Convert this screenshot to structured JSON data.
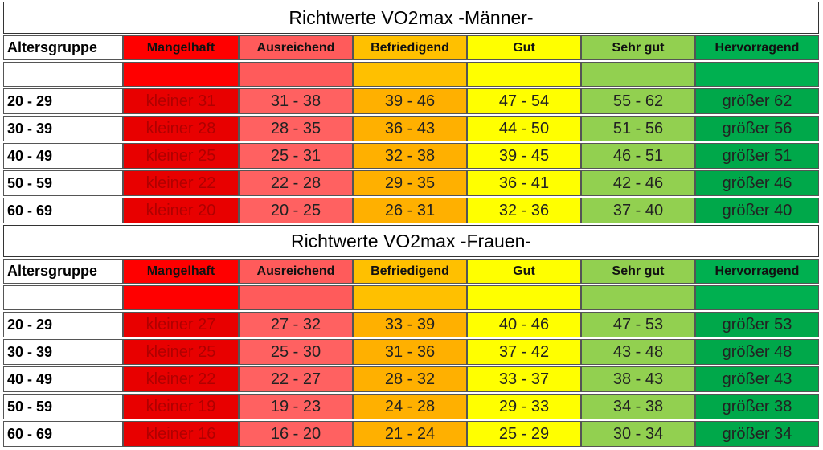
{
  "sections": [
    {
      "title": "Richtwerte VO2max -Männer-",
      "headers": [
        "Altersgruppe",
        "Mangelhaft",
        "Ausreichend",
        "Befriedigend",
        "Gut",
        "Sehr gut",
        "Hervorragend"
      ],
      "rows": [
        [
          "20 - 29",
          "kleiner 31",
          "31 - 38",
          "39 - 46",
          "47 - 54",
          "55 - 62",
          "größer 62"
        ],
        [
          "30 - 39",
          "kleiner 28",
          "28 - 35",
          "36 - 43",
          "44 - 50",
          "51 - 56",
          "größer 56"
        ],
        [
          "40 - 49",
          "kleiner 25",
          "25 - 31",
          "32 - 38",
          "39 - 45",
          "46 - 51",
          "größer 51"
        ],
        [
          "50 - 59",
          "kleiner 22",
          "22 - 28",
          "29 - 35",
          "36 - 41",
          "42 - 46",
          "größer 46"
        ],
        [
          "60 - 69",
          "kleiner 20",
          "20 - 25",
          "26 - 31",
          "32 - 36",
          "37 - 40",
          "größer 40"
        ]
      ]
    },
    {
      "title": "Richtwerte VO2max -Frauen-",
      "headers": [
        "Altersgruppe",
        "Mangelhaft",
        "Ausreichend",
        "Befriedigend",
        "Gut",
        "Sehr gut",
        "Hervorragend"
      ],
      "rows": [
        [
          "20 - 29",
          "kleiner 27",
          "27 - 32",
          "33 - 39",
          "40 - 46",
          "47 - 53",
          "größer 53"
        ],
        [
          "30 - 39",
          "kleiner 25",
          "25 - 30",
          "31 - 36",
          "37 - 42",
          "43 - 48",
          "größer 48"
        ],
        [
          "40 - 49",
          "kleiner 22",
          "22 - 27",
          "28 - 32",
          "33 - 37",
          "38 - 43",
          "größer 43"
        ],
        [
          "50 - 59",
          "kleiner 19",
          "19 - 23",
          "24 - 28",
          "29 - 33",
          "34 - 38",
          "größer 38"
        ],
        [
          "60 - 69",
          "kleiner 16",
          "16 - 20",
          "21 - 24",
          "25 - 29",
          "30 - 34",
          "größer 34"
        ]
      ]
    }
  ]
}
